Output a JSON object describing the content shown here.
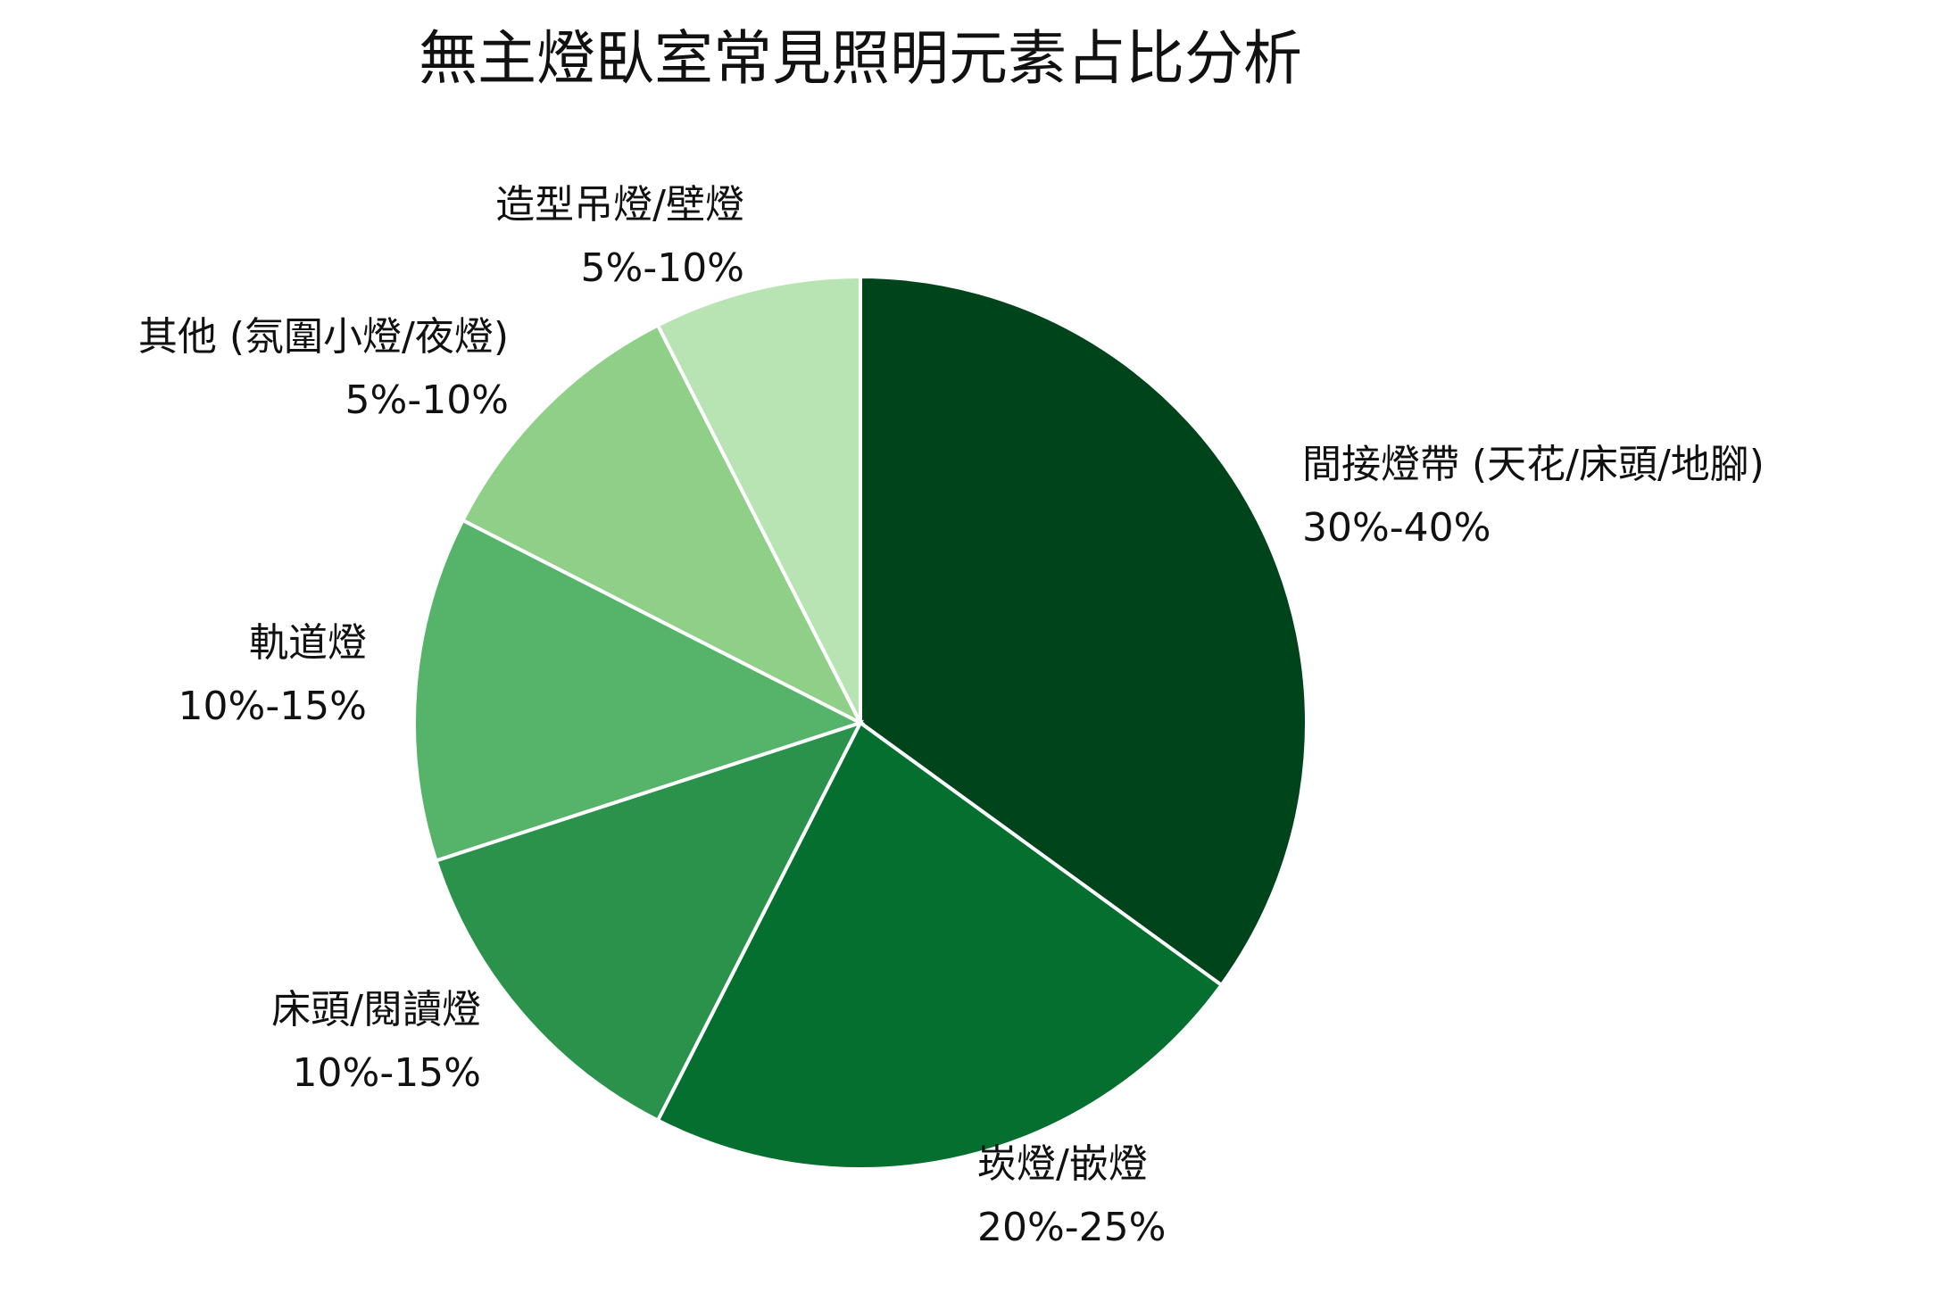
{
  "chart_data": {
    "type": "pie",
    "title": "無主燈臥室常見照明元素占比分析",
    "categories": [
      "間接燈帶 (天花/床頭/地腳)",
      "崁燈/嵌燈",
      "床頭/閱讀燈",
      "軌道燈",
      "其他 (氛圍小燈/夜燈)",
      "造型吊燈/壁燈"
    ],
    "values": [
      35,
      22.5,
      12.5,
      12.5,
      10,
      7.5
    ],
    "ranges": [
      "30%-40%",
      "20%-25%",
      "10%-15%",
      "10%-15%",
      "5%-10%",
      "5%-10%"
    ],
    "colors": [
      "#00441b",
      "#046f2f",
      "#2a924b",
      "#55b46a",
      "#8fcf88",
      "#b8e3b3"
    ]
  }
}
